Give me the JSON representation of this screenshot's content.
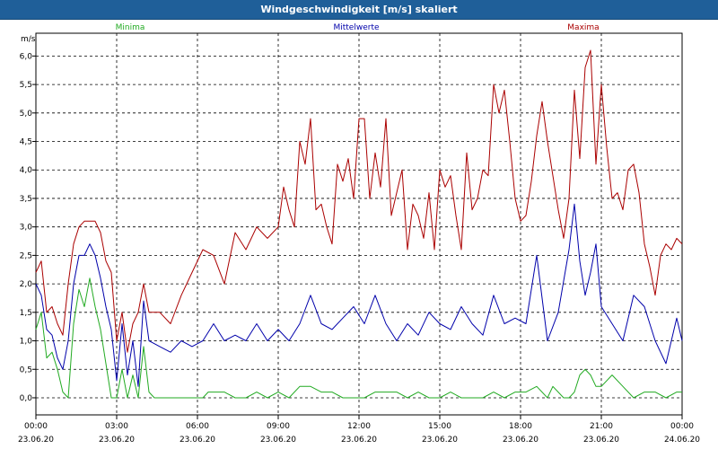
{
  "window": {
    "title": "Windgeschwindigkeit [m/s] skaliert"
  },
  "chart_data": {
    "type": "line",
    "title": "Windgeschwindigkeit [m/s] skaliert",
    "ylabel": "m/s",
    "ylim": [
      -0.3,
      6.4
    ],
    "yticks": [
      0.0,
      0.5,
      1.0,
      1.5,
      2.0,
      2.5,
      3.0,
      3.5,
      4.0,
      4.5,
      5.0,
      5.5,
      6.0
    ],
    "ytick_labels": [
      "0,0",
      "0,5",
      "1,0",
      "1,5",
      "2,0",
      "2,5",
      "3,0",
      "3,5",
      "4,0",
      "4,5",
      "5,0",
      "5,5",
      "6,0"
    ],
    "xlim": [
      0,
      24
    ],
    "xticks": [
      0,
      3,
      6,
      9,
      12,
      15,
      18,
      21,
      24
    ],
    "xtick_labels": [
      {
        "time": "00:00",
        "date": "23.06.20"
      },
      {
        "time": "03:00",
        "date": "23.06.20"
      },
      {
        "time": "06:00",
        "date": "23.06.20"
      },
      {
        "time": "09:00",
        "date": "23.06.20"
      },
      {
        "time": "12:00",
        "date": "23.06.20"
      },
      {
        "time": "15:00",
        "date": "23.06.20"
      },
      {
        "time": "18:00",
        "date": "23.06.20"
      },
      {
        "time": "21:00",
        "date": "23.06.20"
      },
      {
        "time": "00:00",
        "date": "24.06.20"
      }
    ],
    "grid": true,
    "legend_position": "top",
    "series": [
      {
        "name": "Minima",
        "color": "#22aa22",
        "x": [
          0,
          0.2,
          0.4,
          0.6,
          0.8,
          1.0,
          1.2,
          1.4,
          1.6,
          1.8,
          2.0,
          2.2,
          2.4,
          2.6,
          2.8,
          3.0,
          3.2,
          3.4,
          3.6,
          3.8,
          4.0,
          4.2,
          4.4,
          4.6,
          5.0,
          6.0,
          6.2,
          6.4,
          7.0,
          7.4,
          7.8,
          8.2,
          8.6,
          9.0,
          9.4,
          9.8,
          10.2,
          10.6,
          11.0,
          11.4,
          11.8,
          12.2,
          12.6,
          13.0,
          13.4,
          13.8,
          14.2,
          14.6,
          15.0,
          15.4,
          15.8,
          16.2,
          16.6,
          17.0,
          17.4,
          17.8,
          18.2,
          18.6,
          19.0,
          19.2,
          19.6,
          19.8,
          20.0,
          20.2,
          20.4,
          20.6,
          20.8,
          21.0,
          21.4,
          21.8,
          22.2,
          22.6,
          23.0,
          23.4,
          23.8,
          24.0
        ],
        "y": [
          1.2,
          1.5,
          0.7,
          0.8,
          0.5,
          0.1,
          0.0,
          1.3,
          1.9,
          1.6,
          2.1,
          1.6,
          1.2,
          0.6,
          0.0,
          0.0,
          0.5,
          0.0,
          0.4,
          0.0,
          0.9,
          0.1,
          0.0,
          0.0,
          0.0,
          0.0,
          0.0,
          0.1,
          0.1,
          0.0,
          0.0,
          0.1,
          0.0,
          0.1,
          0.0,
          0.2,
          0.2,
          0.1,
          0.1,
          0.0,
          0.0,
          0.0,
          0.1,
          0.1,
          0.1,
          0.0,
          0.1,
          0.0,
          0.0,
          0.1,
          0.0,
          0.0,
          0.0,
          0.1,
          0.0,
          0.1,
          0.1,
          0.2,
          0.0,
          0.2,
          0.0,
          0.0,
          0.1,
          0.4,
          0.5,
          0.4,
          0.2,
          0.2,
          0.4,
          0.2,
          0.0,
          0.1,
          0.1,
          0.0,
          0.1,
          0.1
        ]
      },
      {
        "name": "Mittelwerte",
        "color": "#0000aa",
        "x": [
          0,
          0.2,
          0.4,
          0.6,
          0.8,
          1.0,
          1.2,
          1.4,
          1.6,
          1.8,
          2.0,
          2.2,
          2.4,
          2.6,
          2.8,
          3.0,
          3.2,
          3.4,
          3.6,
          3.8,
          4.0,
          4.2,
          4.6,
          5.0,
          5.4,
          5.8,
          6.2,
          6.6,
          7.0,
          7.4,
          7.8,
          8.2,
          8.6,
          9.0,
          9.4,
          9.8,
          10.2,
          10.6,
          11.0,
          11.4,
          11.8,
          12.2,
          12.6,
          13.0,
          13.4,
          13.8,
          14.2,
          14.6,
          15.0,
          15.4,
          15.8,
          16.2,
          16.6,
          17.0,
          17.4,
          17.8,
          18.2,
          18.6,
          19.0,
          19.4,
          19.8,
          20.0,
          20.2,
          20.4,
          20.6,
          20.8,
          21.0,
          21.4,
          21.8,
          22.2,
          22.6,
          23.0,
          23.4,
          23.8,
          24.0
        ],
        "y": [
          2.0,
          1.8,
          1.2,
          1.1,
          0.7,
          0.5,
          1.0,
          2.0,
          2.5,
          2.5,
          2.7,
          2.5,
          2.1,
          1.6,
          1.2,
          0.3,
          1.3,
          0.4,
          1.0,
          0.2,
          1.7,
          1.0,
          0.9,
          0.8,
          1.0,
          0.9,
          1.0,
          1.3,
          1.0,
          1.1,
          1.0,
          1.3,
          1.0,
          1.2,
          1.0,
          1.3,
          1.8,
          1.3,
          1.2,
          1.4,
          1.6,
          1.3,
          1.8,
          1.3,
          1.0,
          1.3,
          1.1,
          1.5,
          1.3,
          1.2,
          1.6,
          1.3,
          1.1,
          1.8,
          1.3,
          1.4,
          1.3,
          2.5,
          1.0,
          1.5,
          2.6,
          3.4,
          2.4,
          1.8,
          2.2,
          2.7,
          1.6,
          1.3,
          1.0,
          1.8,
          1.6,
          1.0,
          0.6,
          1.4,
          1.0
        ]
      },
      {
        "name": "Maxima",
        "color": "#aa0000",
        "x": [
          0,
          0.2,
          0.4,
          0.6,
          0.8,
          1.0,
          1.2,
          1.4,
          1.6,
          1.8,
          2.0,
          2.2,
          2.4,
          2.6,
          2.8,
          3.0,
          3.2,
          3.4,
          3.6,
          3.8,
          4.0,
          4.2,
          4.6,
          5.0,
          5.4,
          5.8,
          6.2,
          6.6,
          7.0,
          7.4,
          7.8,
          8.2,
          8.6,
          9.0,
          9.2,
          9.4,
          9.6,
          9.8,
          10.0,
          10.2,
          10.4,
          10.6,
          10.8,
          11.0,
          11.2,
          11.4,
          11.6,
          11.8,
          12.0,
          12.2,
          12.4,
          12.6,
          12.8,
          13.0,
          13.2,
          13.4,
          13.6,
          13.8,
          14.0,
          14.2,
          14.4,
          14.6,
          14.8,
          15.0,
          15.2,
          15.4,
          15.6,
          15.8,
          16.0,
          16.2,
          16.4,
          16.6,
          16.8,
          17.0,
          17.2,
          17.4,
          17.6,
          17.8,
          18.0,
          18.2,
          18.4,
          18.6,
          18.8,
          19.0,
          19.2,
          19.4,
          19.6,
          19.8,
          20.0,
          20.2,
          20.4,
          20.6,
          20.8,
          21.0,
          21.2,
          21.4,
          21.6,
          21.8,
          22.0,
          22.2,
          22.4,
          22.6,
          22.8,
          23.0,
          23.2,
          23.4,
          23.6,
          23.8,
          24.0
        ],
        "y": [
          2.2,
          2.4,
          1.5,
          1.6,
          1.3,
          1.1,
          2.0,
          2.7,
          3.0,
          3.1,
          3.1,
          3.1,
          2.9,
          2.4,
          2.2,
          1.0,
          1.5,
          0.8,
          1.3,
          1.5,
          2.0,
          1.5,
          1.5,
          1.3,
          1.8,
          2.2,
          2.6,
          2.5,
          2.0,
          2.9,
          2.6,
          3.0,
          2.8,
          3.0,
          3.7,
          3.3,
          3.0,
          4.5,
          4.1,
          4.9,
          3.3,
          3.4,
          3.0,
          2.7,
          4.1,
          3.8,
          4.2,
          3.5,
          4.9,
          4.9,
          3.5,
          4.3,
          3.7,
          4.9,
          3.2,
          3.6,
          4.0,
          2.6,
          3.4,
          3.2,
          2.8,
          3.6,
          2.6,
          4.0,
          3.7,
          3.9,
          3.2,
          2.6,
          4.3,
          3.3,
          3.5,
          4.0,
          3.9,
          5.5,
          5.0,
          5.4,
          4.5,
          3.5,
          3.1,
          3.2,
          3.8,
          4.6,
          5.2,
          4.5,
          3.9,
          3.3,
          2.8,
          3.5,
          5.4,
          4.2,
          5.8,
          6.1,
          4.1,
          5.5,
          4.4,
          3.5,
          3.6,
          3.3,
          4.0,
          4.1,
          3.6,
          2.7,
          2.3,
          1.8,
          2.5,
          2.7,
          2.6,
          2.8,
          2.7
        ]
      }
    ]
  }
}
